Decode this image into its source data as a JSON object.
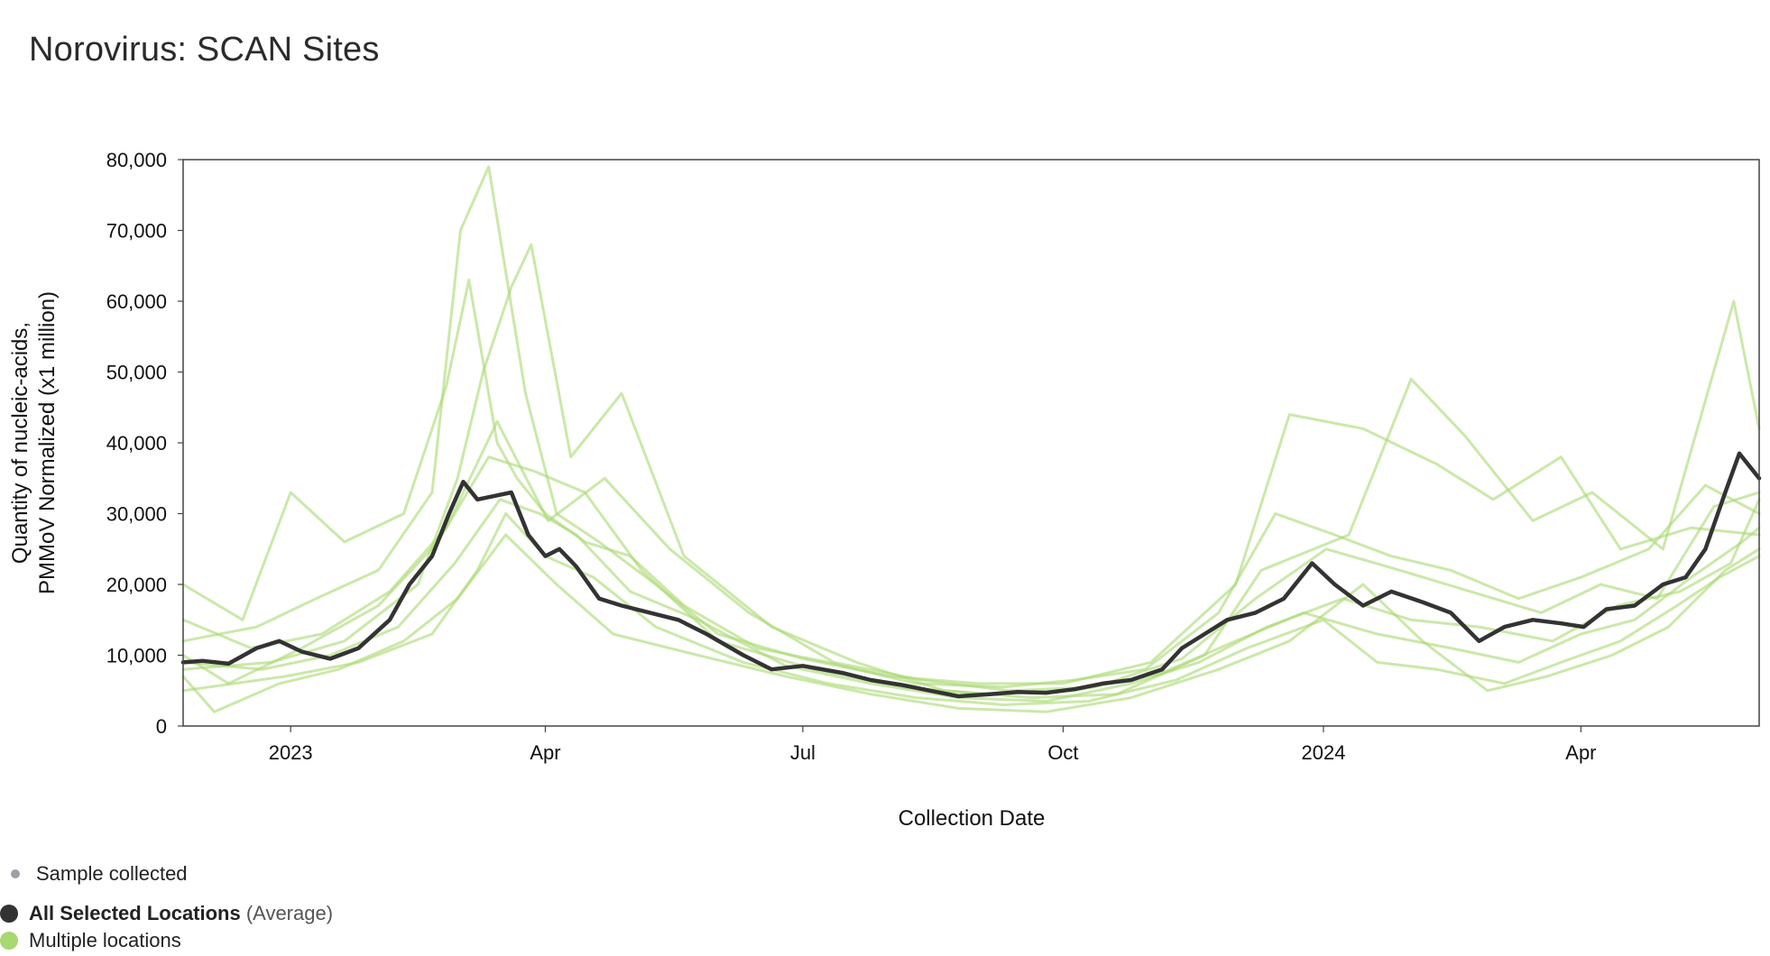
{
  "title": "Norovirus: SCAN Sites",
  "legend": {
    "sample_collected": "Sample collected",
    "average_bold": "All Selected Locations",
    "average_suffix": " (Average)",
    "multiple": "Multiple locations"
  },
  "colors": {
    "average": "#333333",
    "locations": "#a8d870",
    "sample": "#9e9ea6",
    "frame": "#444444"
  },
  "chart_data": {
    "type": "line",
    "title": "Norovirus: SCAN Sites",
    "xlabel": "Collection Date",
    "ylabel_lines": [
      "Quantity of nucleic-acids,",
      "PMMoV Normalized (x1 million)"
    ],
    "xlim": [
      "2022-11-24",
      "2024-06-03"
    ],
    "ylim": [
      0,
      80000
    ],
    "x_ticks": [
      {
        "date": "2023-01-01",
        "label": "2023"
      },
      {
        "date": "2023-04-01",
        "label": "Apr"
      },
      {
        "date": "2023-07-01",
        "label": "Jul"
      },
      {
        "date": "2023-10-01",
        "label": "Oct"
      },
      {
        "date": "2024-01-01",
        "label": "2024"
      },
      {
        "date": "2024-04-01",
        "label": "Apr"
      }
    ],
    "y_ticks": [
      0,
      10000,
      20000,
      30000,
      40000,
      50000,
      60000,
      70000,
      80000
    ],
    "y_tick_labels": [
      "0",
      "10,000",
      "20,000",
      "30,000",
      "40,000",
      "50,000",
      "60,000",
      "70,000",
      "80,000"
    ],
    "grid": false,
    "legend_position": "bottom-left",
    "series": [
      {
        "legend_ref": "average",
        "x": [
          "2022-11-24",
          "2022-12-01",
          "2022-12-10",
          "2022-12-20",
          "2022-12-28",
          "2023-01-05",
          "2023-01-15",
          "2023-01-25",
          "2023-02-05",
          "2023-02-12",
          "2023-02-20",
          "2023-02-26",
          "2023-03-03",
          "2023-03-08",
          "2023-03-14",
          "2023-03-20",
          "2023-03-26",
          "2023-04-01",
          "2023-04-06",
          "2023-04-12",
          "2023-04-20",
          "2023-04-28",
          "2023-05-08",
          "2023-05-18",
          "2023-05-28",
          "2023-06-10",
          "2023-06-20",
          "2023-07-01",
          "2023-07-15",
          "2023-07-25",
          "2023-08-05",
          "2023-08-15",
          "2023-08-25",
          "2023-09-05",
          "2023-09-15",
          "2023-09-25",
          "2023-10-05",
          "2023-10-15",
          "2023-10-25",
          "2023-11-05",
          "2023-11-12",
          "2023-11-20",
          "2023-11-28",
          "2023-12-08",
          "2023-12-18",
          "2023-12-28",
          "2024-01-05",
          "2024-01-15",
          "2024-01-25",
          "2024-02-05",
          "2024-02-15",
          "2024-02-25",
          "2024-03-05",
          "2024-03-15",
          "2024-03-25",
          "2024-04-02",
          "2024-04-10",
          "2024-04-20",
          "2024-04-30",
          "2024-05-08",
          "2024-05-15",
          "2024-05-22",
          "2024-05-27",
          "2024-06-03"
        ],
        "y": [
          9000,
          9200,
          8800,
          11000,
          12000,
          10500,
          9500,
          11000,
          15000,
          20000,
          24000,
          30000,
          34500,
          32000,
          32500,
          33000,
          27000,
          24000,
          25000,
          22500,
          18000,
          17000,
          16000,
          15000,
          13000,
          10000,
          8000,
          8500,
          7500,
          6500,
          5800,
          5000,
          4200,
          4500,
          4800,
          4700,
          5200,
          6000,
          6500,
          8000,
          11000,
          13000,
          15000,
          16000,
          18000,
          23000,
          20000,
          17000,
          19000,
          17500,
          16000,
          12000,
          14000,
          15000,
          14500,
          14000,
          16500,
          17000,
          20000,
          21000,
          25000,
          33000,
          38500,
          35000
        ]
      },
      {
        "legend_ref": "multiple",
        "x": [
          "2022-11-24",
          "2022-12-15",
          "2023-01-01",
          "2023-01-20",
          "2023-02-10",
          "2023-02-25",
          "2023-03-05",
          "2023-03-15",
          "2023-03-22",
          "2023-04-01",
          "2023-04-15",
          "2023-05-01",
          "2023-05-20",
          "2023-06-15",
          "2023-07-10",
          "2023-08-10",
          "2023-09-10",
          "2023-10-05",
          "2023-10-30",
          "2023-11-25",
          "2023-12-15",
          "2024-01-05",
          "2024-01-25",
          "2024-02-15",
          "2024-03-10",
          "2024-04-01",
          "2024-04-25",
          "2024-05-15",
          "2024-06-03"
        ],
        "y": [
          20000,
          15000,
          33000,
          26000,
          30000,
          48000,
          63000,
          40000,
          35000,
          30000,
          26000,
          24000,
          17000,
          11000,
          9000,
          6000,
          5500,
          6500,
          8000,
          16000,
          30000,
          27000,
          24000,
          22000,
          18000,
          21000,
          25000,
          34000,
          30000
        ]
      },
      {
        "legend_ref": "multiple",
        "x": [
          "2022-11-24",
          "2022-12-20",
          "2023-01-10",
          "2023-02-01",
          "2023-02-20",
          "2023-03-02",
          "2023-03-12",
          "2023-03-25",
          "2023-04-05",
          "2023-04-20",
          "2023-05-10",
          "2023-06-01",
          "2023-07-01",
          "2023-08-01",
          "2023-09-01",
          "2023-10-01",
          "2023-11-01",
          "2023-12-01",
          "2023-12-20",
          "2024-01-15",
          "2024-02-10",
          "2024-03-01",
          "2024-03-25",
          "2024-04-15",
          "2024-05-10",
          "2024-06-03"
        ],
        "y": [
          12000,
          14000,
          18000,
          22000,
          33000,
          70000,
          79000,
          47000,
          30000,
          26000,
          20000,
          13000,
          9500,
          7000,
          6000,
          6000,
          9000,
          20000,
          44000,
          42000,
          37000,
          32000,
          38000,
          25000,
          28000,
          27000
        ]
      },
      {
        "legend_ref": "multiple",
        "x": [
          "2022-11-24",
          "2022-12-25",
          "2023-01-20",
          "2023-02-15",
          "2023-03-01",
          "2023-03-10",
          "2023-03-20",
          "2023-03-27",
          "2023-04-10",
          "2023-04-28",
          "2023-05-20",
          "2023-06-20",
          "2023-07-20",
          "2023-08-20",
          "2023-09-20",
          "2023-10-20",
          "2023-11-20",
          "2023-12-10",
          "2024-01-10",
          "2024-02-01",
          "2024-02-20",
          "2024-03-15",
          "2024-04-05",
          "2024-04-30",
          "2024-05-25",
          "2024-06-03"
        ],
        "y": [
          8000,
          9000,
          12000,
          20000,
          35000,
          50000,
          62000,
          68000,
          38000,
          47000,
          24000,
          14000,
          9000,
          5000,
          4000,
          4500,
          10000,
          22000,
          27000,
          49000,
          41000,
          29000,
          33000,
          25000,
          60000,
          42000
        ]
      },
      {
        "legend_ref": "multiple",
        "x": [
          "2022-11-24",
          "2022-12-30",
          "2023-01-25",
          "2023-02-20",
          "2023-03-08",
          "2023-03-18",
          "2023-04-01",
          "2023-04-18",
          "2023-05-10",
          "2023-06-10",
          "2023-07-10",
          "2023-08-10",
          "2023-09-10",
          "2023-10-10",
          "2023-11-10",
          "2023-12-05",
          "2024-01-01",
          "2024-01-20",
          "2024-02-10",
          "2024-03-05",
          "2024-03-25",
          "2024-04-15",
          "2024-05-05",
          "2024-05-20",
          "2024-06-03"
        ],
        "y": [
          5000,
          7000,
          9000,
          13000,
          22000,
          30000,
          24000,
          21000,
          14000,
          9000,
          6000,
          4000,
          3000,
          3500,
          6500,
          11000,
          15000,
          9000,
          8000,
          6000,
          9000,
          12000,
          17000,
          21000,
          24000
        ]
      },
      {
        "legend_ref": "multiple",
        "x": [
          "2022-11-24",
          "2022-12-10",
          "2023-01-05",
          "2023-02-01",
          "2023-02-22",
          "2023-03-12",
          "2023-03-28",
          "2023-04-15",
          "2023-05-05",
          "2023-06-01",
          "2023-07-05",
          "2023-08-05",
          "2023-09-05",
          "2023-10-05",
          "2023-11-05",
          "2023-12-01",
          "2023-12-25",
          "2024-01-20",
          "2024-02-15",
          "2024-03-10",
          "2024-04-01",
          "2024-04-20",
          "2024-05-10",
          "2024-05-28",
          "2024-06-03"
        ],
        "y": [
          10000,
          6000,
          11000,
          17000,
          26000,
          38000,
          36000,
          33000,
          22000,
          12000,
          8000,
          5500,
          4500,
          5000,
          7500,
          12000,
          16000,
          13000,
          11000,
          9000,
          13000,
          15000,
          21000,
          26000,
          28000
        ]
      },
      {
        "legend_ref": "multiple",
        "x": [
          "2022-11-24",
          "2022-12-18",
          "2023-01-12",
          "2023-02-05",
          "2023-02-25",
          "2023-03-15",
          "2023-04-02",
          "2023-04-22",
          "2023-05-15",
          "2023-06-12",
          "2023-07-12",
          "2023-08-12",
          "2023-09-12",
          "2023-10-12",
          "2023-11-12",
          "2023-12-08",
          "2024-01-02",
          "2024-01-28",
          "2024-02-22",
          "2024-03-18",
          "2024-04-08",
          "2024-04-28",
          "2024-05-18",
          "2024-06-03"
        ],
        "y": [
          15000,
          11000,
          13000,
          19000,
          28000,
          43000,
          29000,
          35000,
          25000,
          16000,
          9000,
          6500,
          5000,
          5500,
          9500,
          18000,
          25000,
          22000,
          19000,
          16000,
          20000,
          18000,
          31000,
          33000
        ]
      },
      {
        "legend_ref": "multiple",
        "x": [
          "2022-11-24",
          "2022-12-05",
          "2022-12-28",
          "2023-01-18",
          "2023-02-10",
          "2023-03-01",
          "2023-03-18",
          "2023-04-05",
          "2023-04-25",
          "2023-05-25",
          "2023-06-25",
          "2023-07-25",
          "2023-08-25",
          "2023-09-25",
          "2023-10-25",
          "2023-11-25",
          "2023-12-20",
          "2024-01-15",
          "2024-02-05",
          "2024-02-28",
          "2024-03-20",
          "2024-04-12",
          "2024-05-02",
          "2024-05-22",
          "2024-06-03"
        ],
        "y": [
          7000,
          2000,
          6000,
          8000,
          12000,
          18000,
          27000,
          20000,
          13000,
          10000,
          7000,
          4500,
          2500,
          2000,
          4000,
          8000,
          12000,
          20000,
          12000,
          5000,
          7000,
          10000,
          14000,
          22000,
          25000
        ]
      },
      {
        "legend_ref": "multiple",
        "x": [
          "2022-11-24",
          "2022-12-22",
          "2023-01-15",
          "2023-02-08",
          "2023-02-28",
          "2023-03-16",
          "2023-03-30",
          "2023-04-12",
          "2023-05-01",
          "2023-05-25",
          "2023-06-25",
          "2023-07-25",
          "2023-08-25",
          "2023-09-25",
          "2023-10-25",
          "2023-11-18",
          "2023-12-12",
          "2024-01-08",
          "2024-02-01",
          "2024-02-25",
          "2024-03-22",
          "2024-04-14",
          "2024-05-06",
          "2024-05-24",
          "2024-06-03"
        ],
        "y": [
          9000,
          8000,
          10000,
          14000,
          23000,
          32000,
          30000,
          27000,
          19000,
          15000,
          8500,
          6000,
          4000,
          3500,
          6000,
          9000,
          14000,
          18000,
          15000,
          14000,
          12000,
          17000,
          19000,
          23000,
          32000
        ]
      }
    ]
  }
}
